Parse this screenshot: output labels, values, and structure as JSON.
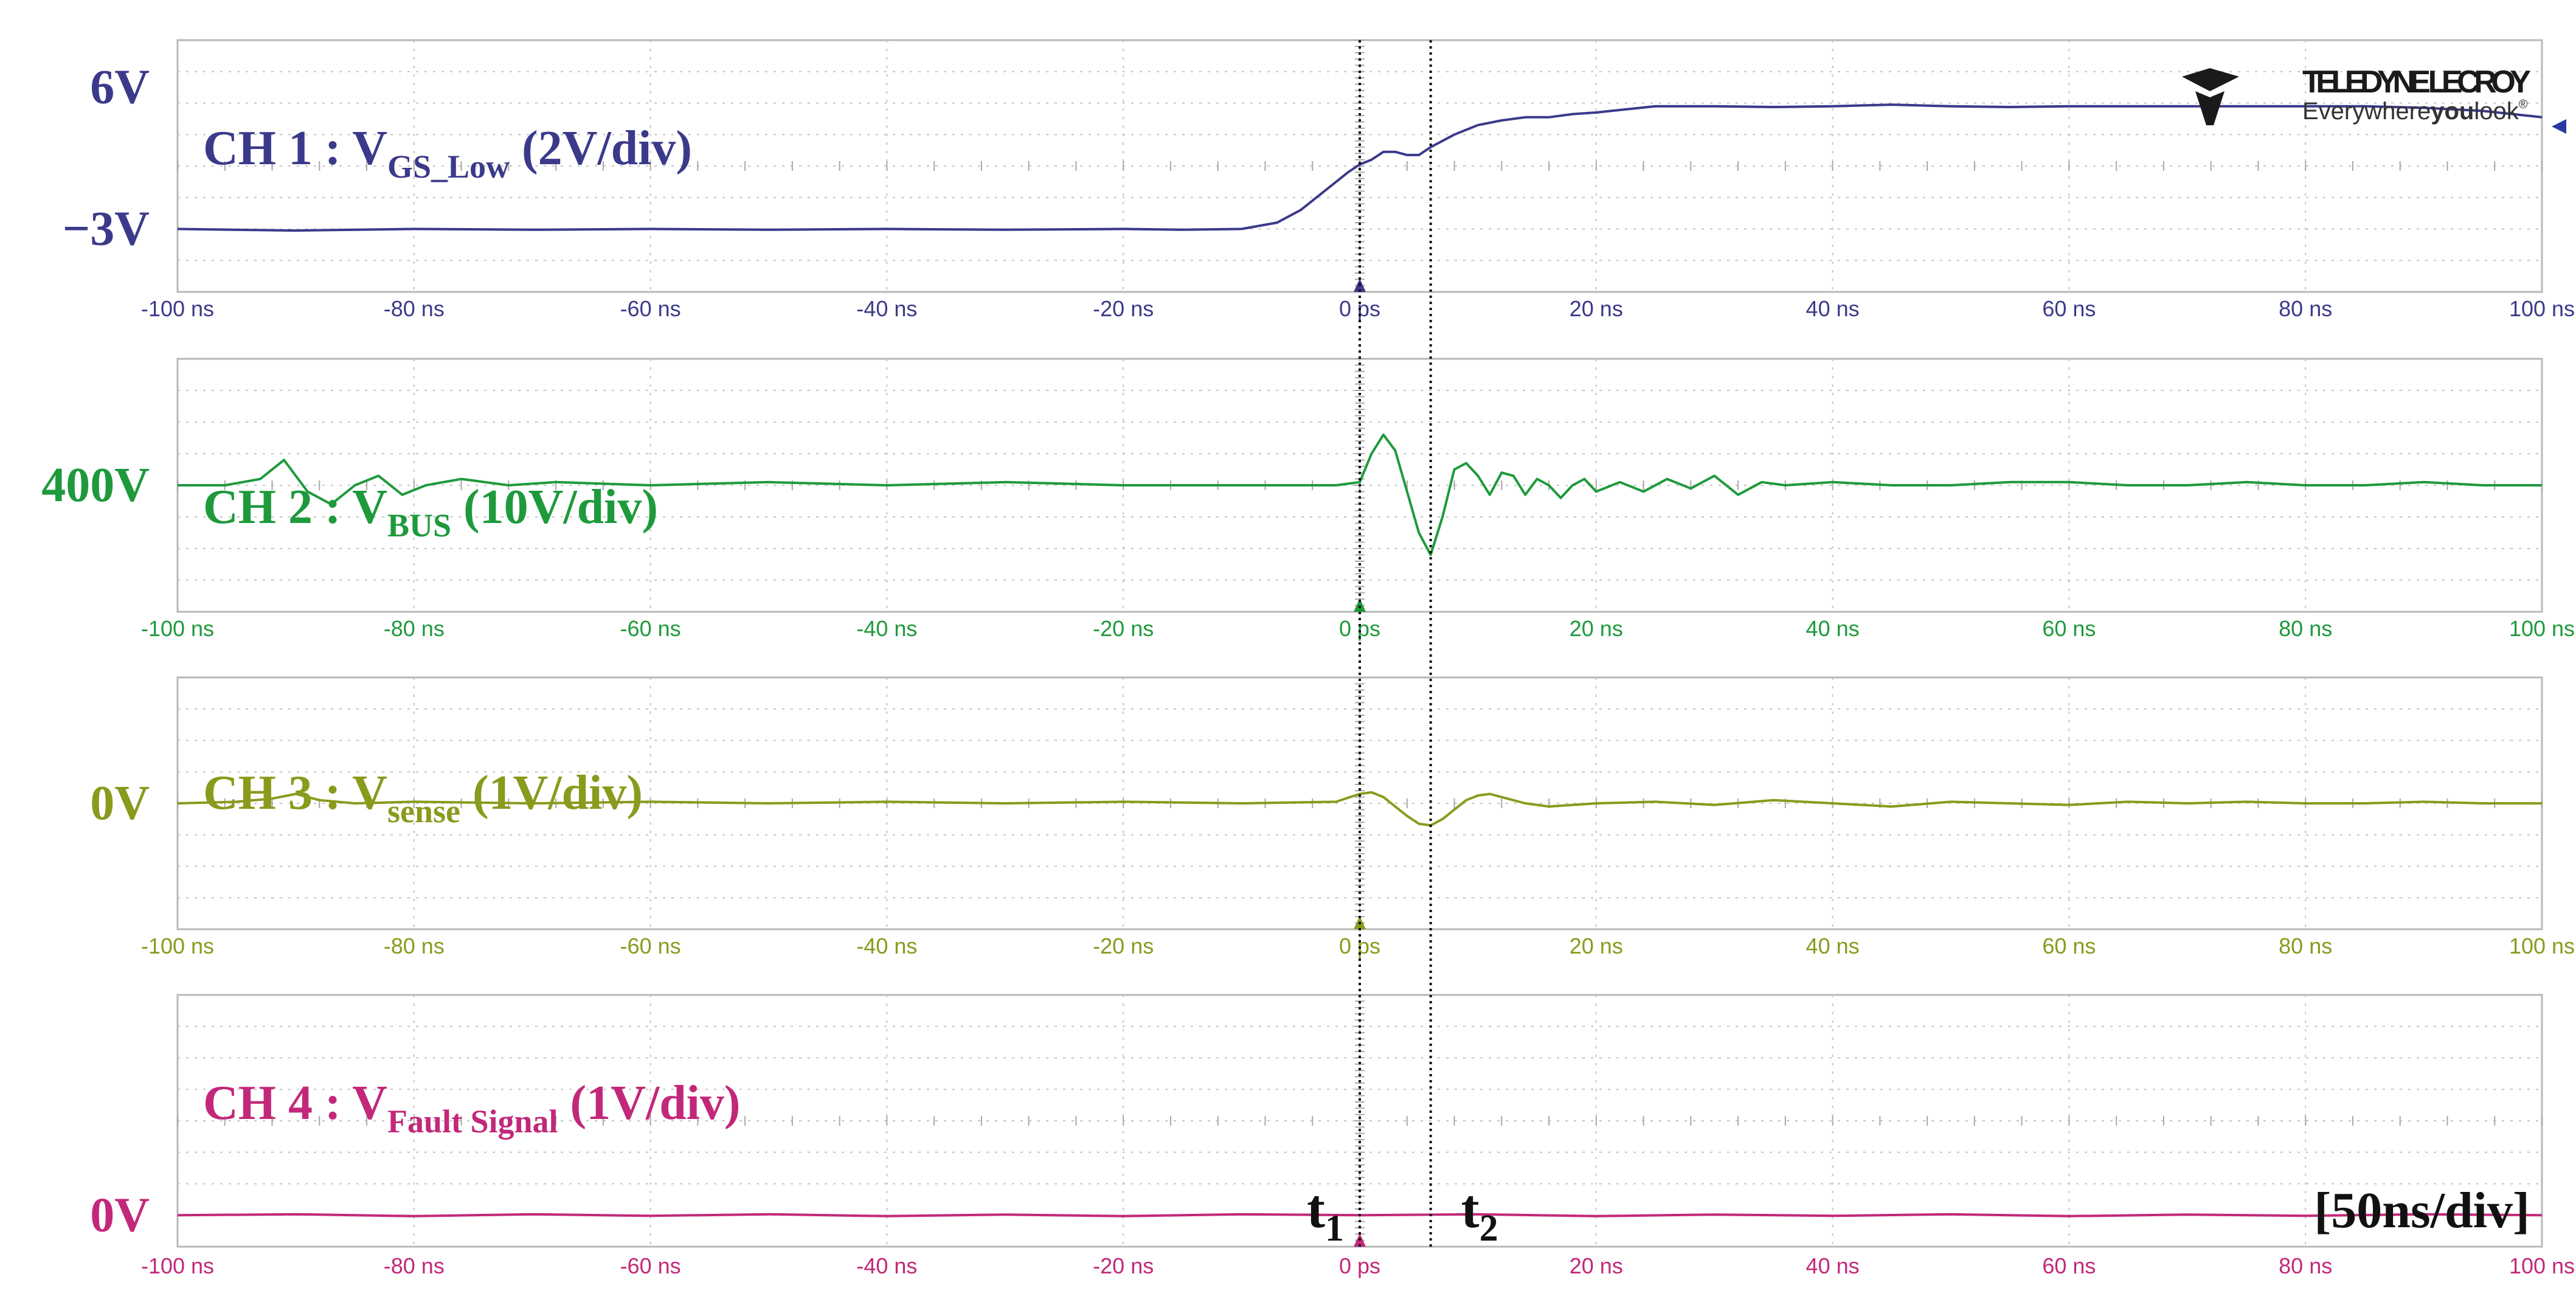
{
  "brand": {
    "name": "TELEDYNE LECROY",
    "tagline_prefix": "Everywhere",
    "tagline_bold": "you",
    "tagline_suffix": "look",
    "tm": "®",
    "color": "#1a1a1a"
  },
  "timebase_label": "[50ns/div]",
  "markers": [
    {
      "label": "t",
      "sub": "1",
      "time_ns": 0
    },
    {
      "label": "t",
      "sub": "2",
      "time_ns": 6
    }
  ],
  "chart_data": [
    {
      "type": "line",
      "channel": "CH 1",
      "title_prefix": "CH 1 : V",
      "title_sub": "GS_Low",
      "title_suffix": " (2V/div)",
      "color": "#3b3a8a",
      "level_labels": [
        {
          "text": "6V",
          "value": 6
        },
        {
          "text": "−3V",
          "value": -3
        }
      ],
      "ylim": [
        -7,
        9
      ],
      "xlim": [
        -100,
        100
      ],
      "tick_labels": [
        "-100 ns",
        "-80 ns",
        "-60 ns",
        "-40 ns",
        "-20 ns",
        "0 ps",
        "20 ns",
        "40 ns",
        "60 ns",
        "80 ns",
        "100 ns"
      ],
      "tick_values": [
        -100,
        -80,
        -60,
        -40,
        -20,
        0,
        20,
        40,
        60,
        80,
        100
      ],
      "grid": true,
      "x": [
        -100,
        -90,
        -80,
        -70,
        -60,
        -50,
        -40,
        -30,
        -20,
        -15,
        -10,
        -7,
        -5,
        -3,
        -1,
        0,
        1,
        2,
        3,
        4,
        5,
        6,
        8,
        10,
        12,
        14,
        16,
        18,
        20,
        25,
        30,
        35,
        40,
        45,
        50,
        55,
        60,
        65,
        70,
        75,
        80,
        85,
        90,
        95,
        100
      ],
      "y": [
        -3.0,
        -3.1,
        -3.0,
        -3.05,
        -3.0,
        -3.05,
        -3.0,
        -3.05,
        -3.0,
        -3.05,
        -3.0,
        -2.6,
        -1.8,
        -0.6,
        0.6,
        1.1,
        1.4,
        1.9,
        1.9,
        1.7,
        1.7,
        2.2,
        3.0,
        3.6,
        3.9,
        4.1,
        4.1,
        4.3,
        4.4,
        4.8,
        4.8,
        4.75,
        4.8,
        4.9,
        4.8,
        4.75,
        4.8,
        4.8,
        4.8,
        4.8,
        4.8,
        4.8,
        4.7,
        4.5,
        4.1
      ]
    },
    {
      "type": "line",
      "channel": "CH 2",
      "title_prefix": "CH 2 : V",
      "title_sub": "BUS",
      "title_suffix": " (10V/div)",
      "color": "#1e9a3c",
      "level_labels": [
        {
          "text": "400V",
          "value": 400
        }
      ],
      "ylim": [
        360,
        440
      ],
      "xlim": [
        -100,
        100
      ],
      "tick_labels": [
        "-100 ns",
        "-80 ns",
        "-60 ns",
        "-40 ns",
        "-20 ns",
        "0 ps",
        "20 ns",
        "40 ns",
        "60 ns",
        "80 ns",
        "100 ns"
      ],
      "tick_values": [
        -100,
        -80,
        -60,
        -40,
        -20,
        0,
        20,
        40,
        60,
        80,
        100
      ],
      "grid": true,
      "x": [
        -100,
        -96,
        -93,
        -91,
        -89,
        -87,
        -85,
        -83,
        -81,
        -79,
        -76,
        -72,
        -68,
        -60,
        -50,
        -40,
        -30,
        -20,
        -10,
        -2,
        0,
        1,
        2,
        3,
        4,
        5,
        6,
        7,
        8,
        9,
        10,
        11,
        12,
        13,
        14,
        15,
        16,
        17,
        18,
        19,
        20,
        22,
        24,
        26,
        28,
        30,
        32,
        34,
        36,
        40,
        45,
        50,
        55,
        60,
        65,
        70,
        75,
        80,
        85,
        90,
        95,
        100
      ],
      "y": [
        400,
        400,
        402,
        408,
        398,
        394,
        400,
        403,
        397,
        400,
        402,
        400,
        401,
        400,
        401,
        400,
        401,
        400,
        400,
        400,
        401,
        410,
        416,
        411,
        398,
        385,
        378,
        390,
        405,
        407,
        403,
        397,
        404,
        403,
        397,
        402,
        400,
        396,
        400,
        402,
        398,
        401,
        398,
        402,
        399,
        403,
        397,
        401,
        400,
        401,
        400,
        400,
        401,
        401,
        400,
        400,
        401,
        400,
        400,
        401,
        400,
        400
      ]
    },
    {
      "type": "line",
      "channel": "CH 3",
      "title_prefix": "CH 3 : V",
      "title_sub": "sense",
      "title_suffix": " (1V/div)",
      "color": "#8a9a1c",
      "level_labels": [
        {
          "text": "0V",
          "value": 0
        }
      ],
      "ylim": [
        -4,
        4
      ],
      "xlim": [
        -100,
        100
      ],
      "tick_labels": [
        "-100 ns",
        "-80 ns",
        "-60 ns",
        "-40 ns",
        "-20 ns",
        "0 ps",
        "20 ns",
        "40 ns",
        "60 ns",
        "80 ns",
        "100 ns"
      ],
      "tick_values": [
        -100,
        -80,
        -60,
        -40,
        -20,
        0,
        20,
        40,
        60,
        80,
        100
      ],
      "grid": true,
      "x": [
        -100,
        -95,
        -92,
        -90,
        -88,
        -85,
        -80,
        -70,
        -60,
        -50,
        -40,
        -30,
        -20,
        -10,
        -2,
        0,
        1,
        2,
        3,
        4,
        5,
        6,
        7,
        8,
        9,
        10,
        11,
        12,
        14,
        16,
        18,
        20,
        25,
        30,
        35,
        40,
        45,
        50,
        55,
        60,
        65,
        70,
        75,
        80,
        85,
        90,
        95,
        100
      ],
      "y": [
        0,
        0.05,
        0.15,
        0.3,
        0.1,
        0,
        0.05,
        0,
        0.05,
        0,
        0.05,
        0,
        0.05,
        0,
        0.05,
        0.3,
        0.35,
        0.2,
        -0.1,
        -0.4,
        -0.65,
        -0.7,
        -0.5,
        -0.2,
        0.1,
        0.25,
        0.3,
        0.2,
        0,
        -0.1,
        -0.05,
        0,
        0.05,
        -0.05,
        0.1,
        0,
        -0.1,
        0.05,
        0,
        -0.05,
        0.05,
        0,
        0.05,
        0,
        0,
        0.05,
        0,
        0
      ]
    },
    {
      "type": "line",
      "channel": "CH 4",
      "title_prefix": "CH 4 : V",
      "title_sub": "Fault Signal",
      "title_suffix": " (1V/div)",
      "color": "#c2287a",
      "level_labels": [
        {
          "text": "0V",
          "value": 0
        }
      ],
      "ylim": [
        -1,
        7
      ],
      "xlim": [
        -100,
        100
      ],
      "tick_labels": [
        "-100 ns",
        "-80 ns",
        "-60 ns",
        "-40 ns",
        "-20 ns",
        "0 ps",
        "20 ns",
        "40 ns",
        "60 ns",
        "80 ns",
        "100 ns"
      ],
      "tick_values": [
        -100,
        -80,
        -60,
        -40,
        -20,
        0,
        20,
        40,
        60,
        80,
        100
      ],
      "grid": true,
      "x": [
        -100,
        -90,
        -80,
        -70,
        -60,
        -50,
        -40,
        -30,
        -20,
        -10,
        0,
        10,
        20,
        30,
        40,
        50,
        60,
        70,
        80,
        90,
        100
      ],
      "y": [
        0,
        0.03,
        -0.03,
        0.03,
        -0.02,
        0.03,
        -0.03,
        0.02,
        -0.03,
        0.03,
        0,
        0.03,
        -0.03,
        0.02,
        -0.02,
        0.03,
        -0.03,
        0.02,
        -0.02,
        0.03,
        0
      ]
    }
  ]
}
